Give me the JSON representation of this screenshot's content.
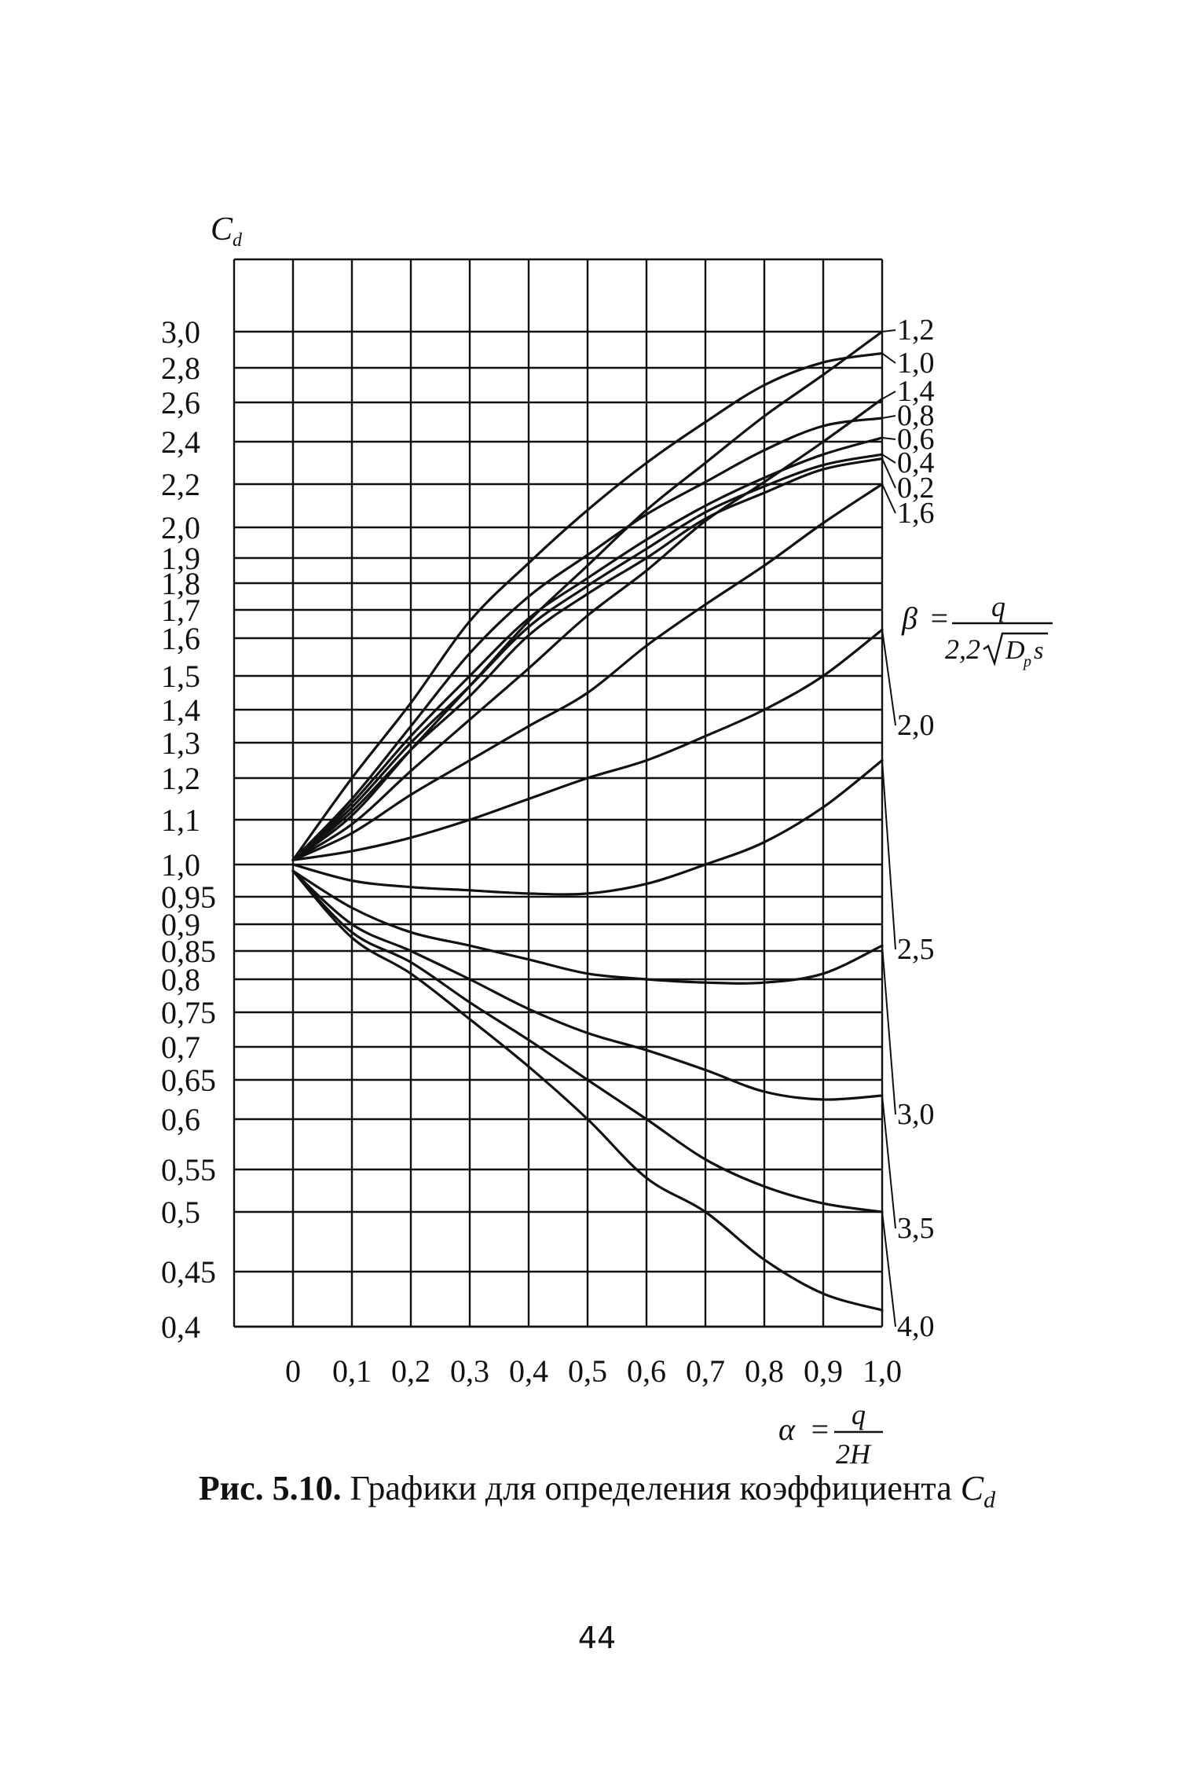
{
  "chart_data": {
    "type": "line",
    "ylabel": "C",
    "ylabel_sub": "d",
    "x_ticks": [
      "0",
      "0,1",
      "0,2",
      "0,3",
      "0,4",
      "0,5",
      "0,6",
      "0,7",
      "0,8",
      "0,9",
      "1,0"
    ],
    "y_tick_labels": [
      "3,0",
      "2,8",
      "2,6",
      "2,4",
      "2,2",
      "2,0",
      "1,9",
      "1,8",
      "1,7",
      "1,6",
      "1,5",
      "1,4",
      "1,3",
      "1,2",
      "1,1",
      "1,0",
      "0,95",
      "0,9",
      "0,85",
      "0,8",
      "0,75",
      "0,7",
      "0,65",
      "0,6",
      "0,55",
      "0,5",
      "0,45",
      "0,4"
    ],
    "y_scale": "nonuniform",
    "xlim": [
      0,
      1.0
    ],
    "grid": true,
    "x_axis_formula": {
      "lhs": "α",
      "num": "q",
      "den": "2H"
    },
    "beta_formula": {
      "lhs": "β",
      "num": "q",
      "den_coef": "2,2",
      "den_radicand": "D",
      "den_sub": "p",
      "den_tail": "s"
    },
    "series": [
      {
        "name": "1,2",
        "x": [
          0,
          0.1,
          0.2,
          0.3,
          0.4,
          0.5,
          0.6,
          0.7,
          0.8,
          0.9,
          1.0
        ],
        "y": [
          1.01,
          1.11,
          1.28,
          1.47,
          1.66,
          1.87,
          2.08,
          2.3,
          2.53,
          2.76,
          3.0
        ]
      },
      {
        "name": "1,0",
        "x": [
          0,
          0.1,
          0.2,
          0.3,
          0.4,
          0.5,
          0.6,
          0.7,
          0.8,
          0.9,
          1.0
        ],
        "y": [
          1.01,
          1.2,
          1.42,
          1.66,
          1.88,
          2.08,
          2.3,
          2.5,
          2.7,
          2.83,
          2.88
        ]
      },
      {
        "name": "1,4",
        "x": [
          0,
          0.1,
          0.2,
          0.3,
          0.4,
          0.5,
          0.6,
          0.7,
          0.8,
          0.9,
          1.0
        ],
        "y": [
          1.01,
          1.09,
          1.22,
          1.37,
          1.52,
          1.68,
          1.85,
          2.03,
          2.21,
          2.4,
          2.62
        ]
      },
      {
        "name": "0,8",
        "x": [
          0,
          0.1,
          0.2,
          0.3,
          0.4,
          0.5,
          0.6,
          0.7,
          0.8,
          0.9,
          1.0
        ],
        "y": [
          1.01,
          1.15,
          1.35,
          1.56,
          1.75,
          1.91,
          2.06,
          2.21,
          2.36,
          2.48,
          2.52
        ]
      },
      {
        "name": "0,6",
        "x": [
          0,
          0.1,
          0.2,
          0.3,
          0.4,
          0.5,
          0.6,
          0.7,
          0.8,
          0.9,
          1.0
        ],
        "y": [
          1.01,
          1.14,
          1.32,
          1.5,
          1.67,
          1.82,
          1.96,
          2.1,
          2.23,
          2.34,
          2.42
        ]
      },
      {
        "name": "0,4",
        "x": [
          0,
          0.1,
          0.2,
          0.3,
          0.4,
          0.5,
          0.6,
          0.7,
          0.8,
          0.9,
          1.0
        ],
        "y": [
          1.01,
          1.13,
          1.3,
          1.47,
          1.64,
          1.79,
          1.93,
          2.07,
          2.19,
          2.29,
          2.34
        ]
      },
      {
        "name": "0,2",
        "x": [
          0,
          0.1,
          0.2,
          0.3,
          0.4,
          0.5,
          0.6,
          0.7,
          0.8,
          0.9,
          1.0
        ],
        "y": [
          1.01,
          1.12,
          1.28,
          1.44,
          1.61,
          1.76,
          1.9,
          2.04,
          2.16,
          2.27,
          2.32
        ]
      },
      {
        "name": "1,6",
        "x": [
          0,
          0.1,
          0.2,
          0.3,
          0.4,
          0.5,
          0.6,
          0.7,
          0.8,
          0.9,
          1.0
        ],
        "y": [
          1.01,
          1.07,
          1.16,
          1.25,
          1.35,
          1.45,
          1.58,
          1.72,
          1.87,
          2.02,
          2.2
        ]
      },
      {
        "name": "2,0",
        "x": [
          0,
          0.1,
          0.2,
          0.3,
          0.4,
          0.5,
          0.6,
          0.7,
          0.8,
          0.9,
          1.0
        ],
        "y": [
          1.01,
          1.03,
          1.06,
          1.1,
          1.15,
          1.2,
          1.25,
          1.32,
          1.4,
          1.5,
          1.63
        ]
      },
      {
        "name": "2,5",
        "x": [
          0,
          0.1,
          0.2,
          0.3,
          0.4,
          0.5,
          0.6,
          0.7,
          0.8,
          0.9,
          1.0
        ],
        "y": [
          1.0,
          0.975,
          0.965,
          0.96,
          0.955,
          0.955,
          0.97,
          1.0,
          1.05,
          1.13,
          1.25
        ]
      },
      {
        "name": "3,0",
        "x": [
          0,
          0.1,
          0.2,
          0.3,
          0.4,
          0.5,
          0.6,
          0.7,
          0.8,
          0.9,
          1.0
        ],
        "y": [
          0.99,
          0.93,
          0.885,
          0.86,
          0.835,
          0.81,
          0.8,
          0.795,
          0.795,
          0.81,
          0.86
        ]
      },
      {
        "name": "3,5",
        "x": [
          0,
          0.1,
          0.2,
          0.3,
          0.4,
          0.5,
          0.6,
          0.7,
          0.8,
          0.9,
          1.0
        ],
        "y": [
          0.99,
          0.9,
          0.85,
          0.8,
          0.755,
          0.72,
          0.695,
          0.665,
          0.635,
          0.625,
          0.63
        ]
      },
      {
        "name": "4,0",
        "x": [
          0,
          0.1,
          0.2,
          0.3,
          0.4,
          0.5,
          0.6,
          0.7,
          0.8,
          0.9,
          1.0
        ],
        "y": [
          0.99,
          0.885,
          0.83,
          0.765,
          0.71,
          0.65,
          0.6,
          0.56,
          0.53,
          0.51,
          0.5
        ]
      },
      {
        "name": "",
        "x": [
          0,
          0.1,
          0.2,
          0.3,
          0.4,
          0.5,
          0.6,
          0.7,
          0.8,
          0.9,
          1.0
        ],
        "y": [
          0.99,
          0.875,
          0.81,
          0.74,
          0.67,
          0.6,
          0.54,
          0.5,
          0.46,
          0.43,
          0.415
        ]
      }
    ]
  },
  "caption": {
    "bold": "Рис. 5.10.",
    "text": " Графики для определения коэффициента ",
    "symbol": "C",
    "symbol_sub": "d"
  },
  "page_number": "44"
}
